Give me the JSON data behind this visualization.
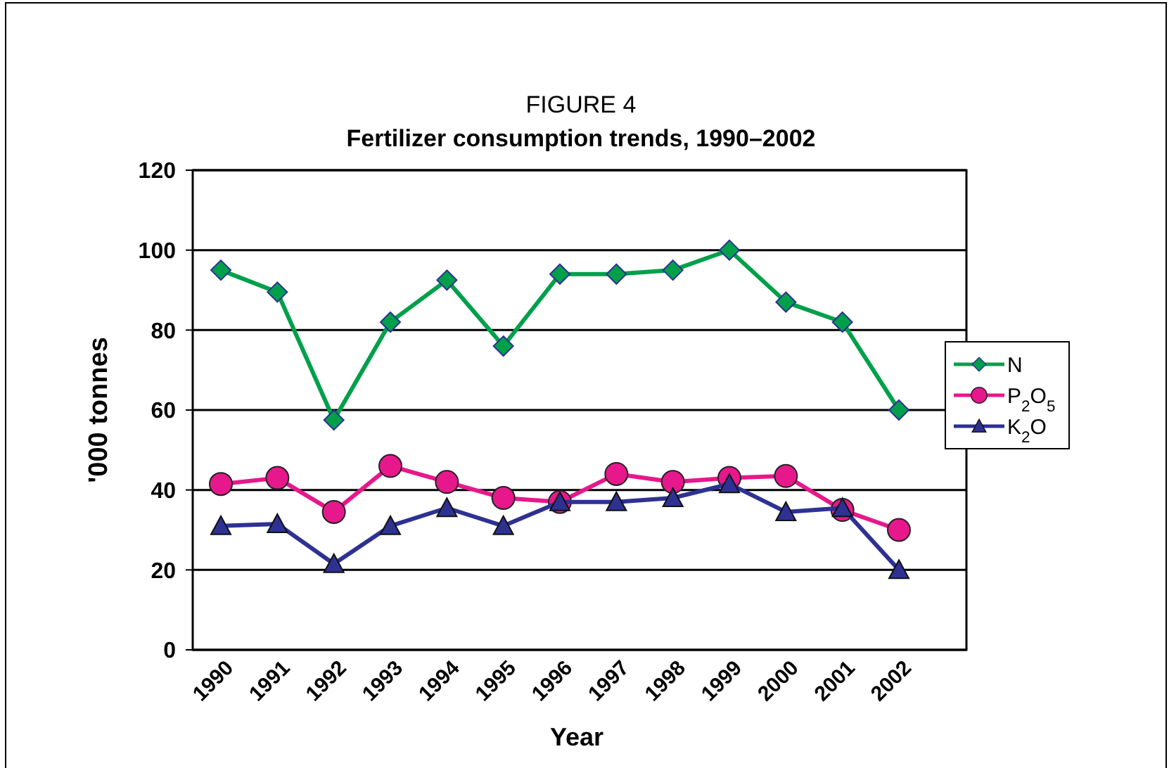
{
  "chart_data": {
    "type": "line",
    "title": "FIGURE 4",
    "subtitle": "Fertilizer consumption trends, 1990–2002",
    "xlabel": "Year",
    "ylabel": "'000 tonnes",
    "categories": [
      "1990",
      "1991",
      "1992",
      "1993",
      "1994",
      "1995",
      "1996",
      "1997",
      "1998",
      "1999",
      "2000",
      "2001",
      "2002"
    ],
    "series": [
      {
        "name": "N",
        "color": "#00a04b",
        "marker": "diamond",
        "values": [
          95,
          89.5,
          57.5,
          82,
          92.5,
          76,
          94,
          94,
          95,
          100,
          87,
          82,
          60
        ]
      },
      {
        "name": "P$_{2}$O$_{5}$",
        "color": "#e6188c",
        "marker": "circle",
        "values": [
          41.5,
          43,
          34.5,
          46,
          42,
          38,
          37,
          44,
          42,
          43,
          43.5,
          35,
          30
        ]
      },
      {
        "name": "K$_{2}$O",
        "color": "#2e3192",
        "marker": "triangle",
        "values": [
          31,
          31.5,
          21.5,
          31,
          35.5,
          31,
          37,
          37,
          38,
          41.5,
          34.5,
          35.5,
          20
        ]
      }
    ],
    "ylim": [
      0,
      120
    ],
    "yticks": [
      0,
      20,
      40,
      60,
      80,
      100,
      120
    ],
    "grid": "y",
    "legend": "right",
    "line_style": "solid"
  }
}
